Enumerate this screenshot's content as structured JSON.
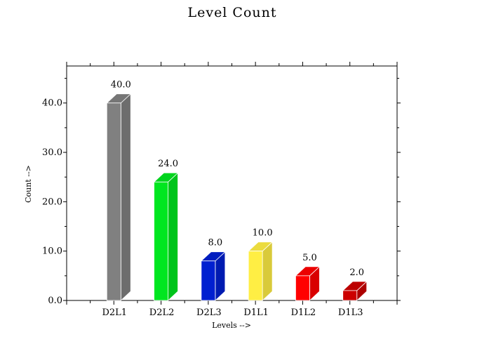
{
  "chart_data": {
    "type": "bar",
    "title": "Level Count",
    "xlabel": "Levels -->",
    "ylabel": "Count -->",
    "categories": [
      "D2L1",
      "D2L2",
      "D2L3",
      "D1L1",
      "D1L2",
      "D1L3"
    ],
    "values": [
      40.0,
      24.0,
      8.0,
      10.0,
      5.0,
      2.0
    ],
    "value_labels": [
      "40.0",
      "24.0",
      "8.0",
      "10.0",
      "5.0",
      "2.0"
    ],
    "colors": [
      "#808080",
      "#00e620",
      "#0020d0",
      "#ffee44",
      "#ff0000",
      "#cc0000"
    ],
    "ylim": [
      0,
      47.5
    ],
    "yticks": [
      0,
      10,
      20,
      30,
      40
    ],
    "ytick_labels": [
      "0.0",
      "10.0",
      "20.0",
      "30.0",
      "40.0"
    ],
    "grid": false,
    "legend": "none"
  }
}
